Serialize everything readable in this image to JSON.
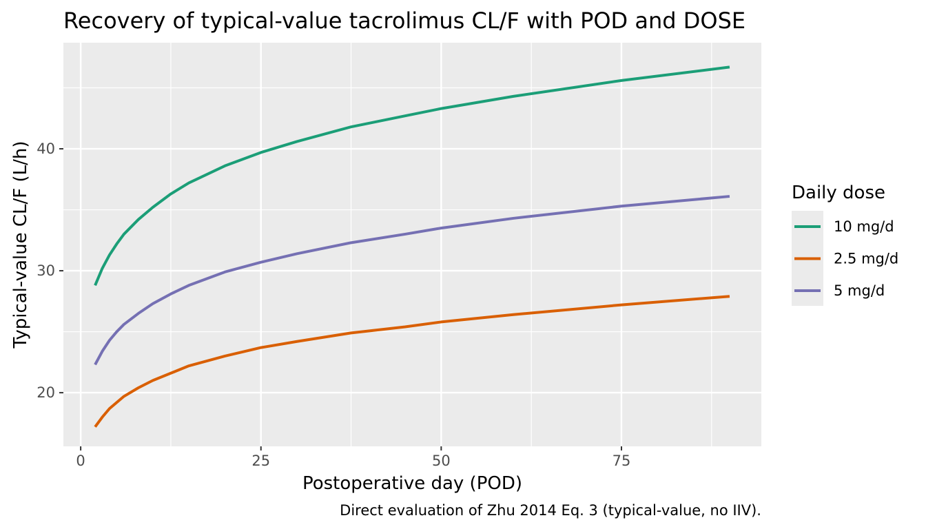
{
  "chart_data": {
    "type": "line",
    "title": "Recovery of typical-value tacrolimus CL/F with POD and DOSE",
    "xlabel": "Postoperative day (POD)",
    "ylabel": "Typical-value CL/F (L/h)",
    "caption": "Direct evaluation of Zhu 2014 Eq. 3 (typical-value, no IIV).",
    "xlim": [
      -2.4,
      94.4
    ],
    "ylim": [
      15.6,
      48.7
    ],
    "x_ticks": [
      0,
      25,
      50,
      75
    ],
    "x_tick_labels": [
      "0",
      "25",
      "50",
      "75"
    ],
    "y_ticks": [
      20,
      30,
      40
    ],
    "y_tick_labels": [
      "20",
      "30",
      "40"
    ],
    "grid": true,
    "legend": {
      "title": "Daily dose",
      "position": "right"
    },
    "x": [
      2,
      3,
      4,
      5,
      6,
      8,
      10,
      12.5,
      15,
      20,
      25,
      30,
      37.5,
      45,
      50,
      60,
      75,
      90
    ],
    "series": [
      {
        "name": "10 mg/d",
        "color": "#1B9E77",
        "values": [
          28.8,
          30.2,
          31.3,
          32.2,
          33.0,
          34.2,
          35.2,
          36.3,
          37.2,
          38.6,
          39.7,
          40.6,
          41.8,
          42.7,
          43.3,
          44.3,
          45.6,
          46.7
        ]
      },
      {
        "name": "2.5 mg/d",
        "color": "#D95F02",
        "values": [
          17.2,
          18.0,
          18.7,
          19.2,
          19.7,
          20.4,
          21.0,
          21.6,
          22.2,
          23.0,
          23.7,
          24.2,
          24.9,
          25.4,
          25.8,
          26.4,
          27.2,
          27.9
        ]
      },
      {
        "name": "5 mg/d",
        "color": "#7570B3",
        "values": [
          22.3,
          23.4,
          24.3,
          25.0,
          25.6,
          26.5,
          27.3,
          28.1,
          28.8,
          29.9,
          30.7,
          31.4,
          32.3,
          33.0,
          33.5,
          34.3,
          35.3,
          36.1
        ]
      }
    ]
  }
}
